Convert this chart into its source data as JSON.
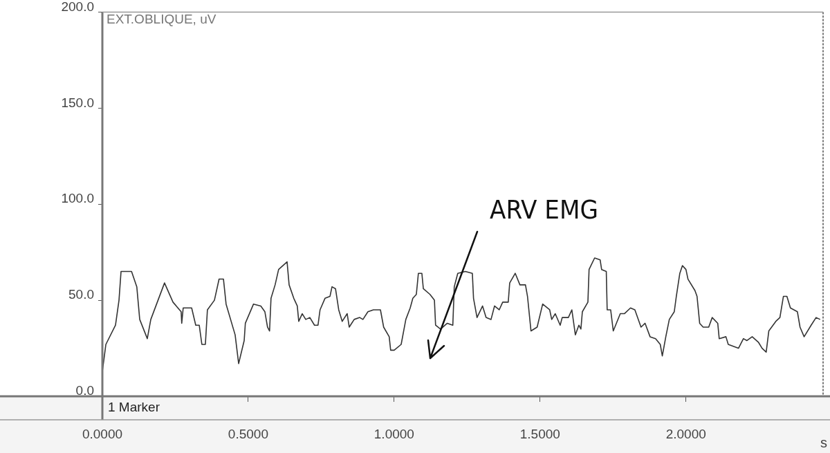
{
  "chart_data": {
    "type": "line",
    "title": "EXT.OBLIQUE, uV",
    "xlabel": "s",
    "annotations": [
      "ARV EMG",
      "1 Marker"
    ],
    "x": [
      0,
      0.012,
      0.045,
      0.057,
      0.064,
      0.1,
      0.118,
      0.128,
      0.154,
      0.166,
      0.213,
      0.242,
      0.27,
      0.272,
      0.277,
      0.306,
      0.32,
      0.332,
      0.341,
      0.353,
      0.36,
      0.384,
      0.4,
      0.415,
      0.424,
      0.455,
      0.467,
      0.486,
      0.49,
      0.518,
      0.543,
      0.557,
      0.566,
      0.573,
      0.578,
      0.592,
      0.604,
      0.633,
      0.64,
      0.656,
      0.668,
      0.673,
      0.685,
      0.697,
      0.711,
      0.727,
      0.739,
      0.746,
      0.763,
      0.78,
      0.787,
      0.799,
      0.81,
      0.822,
      0.839,
      0.846,
      0.863,
      0.882,
      0.893,
      0.91,
      0.929,
      0.953,
      0.964,
      0.983,
      0.988,
      1.0,
      1.024,
      1.04,
      1.055,
      1.064,
      1.076,
      1.083,
      1.095,
      1.1,
      1.123,
      1.138,
      1.142,
      1.159,
      1.182,
      1.201,
      1.206,
      1.218,
      1.244,
      1.268,
      1.272,
      1.284,
      1.303,
      1.315,
      1.332,
      1.344,
      1.36,
      1.372,
      1.391,
      1.396,
      1.415,
      1.431,
      1.45,
      1.457,
      1.469,
      1.49,
      1.509,
      1.533,
      1.54,
      1.552,
      1.569,
      1.576,
      1.597,
      1.609,
      1.621,
      1.633,
      1.64,
      1.645,
      1.664,
      1.668,
      1.687,
      1.706,
      1.711,
      1.727,
      1.73,
      1.742,
      1.751,
      1.775,
      1.789,
      1.81,
      1.825,
      1.846,
      1.86,
      1.877,
      1.896,
      1.912,
      1.919,
      1.931,
      1.943,
      1.96,
      1.967,
      1.979,
      1.988,
      2.0,
      2.007,
      2.031,
      2.038,
      2.047,
      2.059,
      2.078,
      2.09,
      2.109,
      2.114,
      2.137,
      2.145,
      2.18,
      2.197,
      2.209,
      2.227,
      2.249,
      2.261,
      2.275,
      2.284,
      2.308,
      2.322,
      2.334,
      2.346,
      2.358,
      2.382,
      2.391,
      2.405,
      2.429,
      2.446,
      2.46
    ],
    "series": [
      {
        "color": "#333333",
        "values": [
          13,
          27,
          37,
          50,
          65,
          65,
          57,
          40,
          30,
          40,
          59,
          49,
          44,
          38,
          46,
          46,
          37,
          37,
          27,
          27,
          45,
          50,
          61,
          61,
          48,
          32,
          17,
          29,
          38,
          48,
          47,
          44,
          36,
          34,
          51,
          58,
          66,
          70,
          58,
          51,
          47,
          39,
          43,
          40,
          41,
          37,
          37,
          45,
          51,
          52,
          57,
          56,
          45,
          39,
          43,
          36,
          40,
          41,
          40,
          44,
          45,
          45,
          36,
          31,
          24,
          24,
          27,
          40,
          46,
          51,
          53,
          64,
          64,
          56,
          53,
          50,
          37,
          35,
          38,
          37,
          57,
          64,
          65,
          64,
          51,
          41,
          47,
          41,
          40,
          47,
          45,
          49,
          49,
          59,
          64,
          58,
          58,
          52,
          34,
          36,
          48,
          45,
          40,
          43,
          37,
          41,
          41,
          45,
          32,
          37,
          35,
          44,
          49,
          66,
          72,
          71,
          66,
          65,
          45,
          45,
          34,
          43,
          43,
          46,
          45,
          36,
          38,
          31,
          30,
          27,
          21,
          31,
          40,
          44,
          52,
          64,
          68,
          66,
          61,
          55,
          52,
          38,
          36,
          36,
          41,
          38,
          30,
          31,
          27,
          25,
          30,
          29,
          31,
          28,
          25,
          23,
          34,
          39,
          41,
          52,
          52,
          46,
          44,
          36,
          31,
          37,
          41,
          40
        ]
      }
    ],
    "xlim": [
      0,
      2.47
    ],
    "xticks": [
      {
        "value": 0,
        "label": "0.0000"
      },
      {
        "value": 0.5,
        "label": "0.5000"
      },
      {
        "value": 1,
        "label": "1.0000"
      },
      {
        "value": 1.5,
        "label": "1.5000"
      },
      {
        "value": 2,
        "label": "2.0000"
      }
    ],
    "ylim": [
      0,
      200
    ],
    "yticks": [
      {
        "value": 0,
        "label": "0.0"
      },
      {
        "value": 50,
        "label": "50.0"
      },
      {
        "value": 100,
        "label": "100.0"
      },
      {
        "value": 150,
        "label": "150.0"
      },
      {
        "value": 200,
        "label": "200.0"
      }
    ],
    "marker": "none",
    "line_style": "solid"
  }
}
